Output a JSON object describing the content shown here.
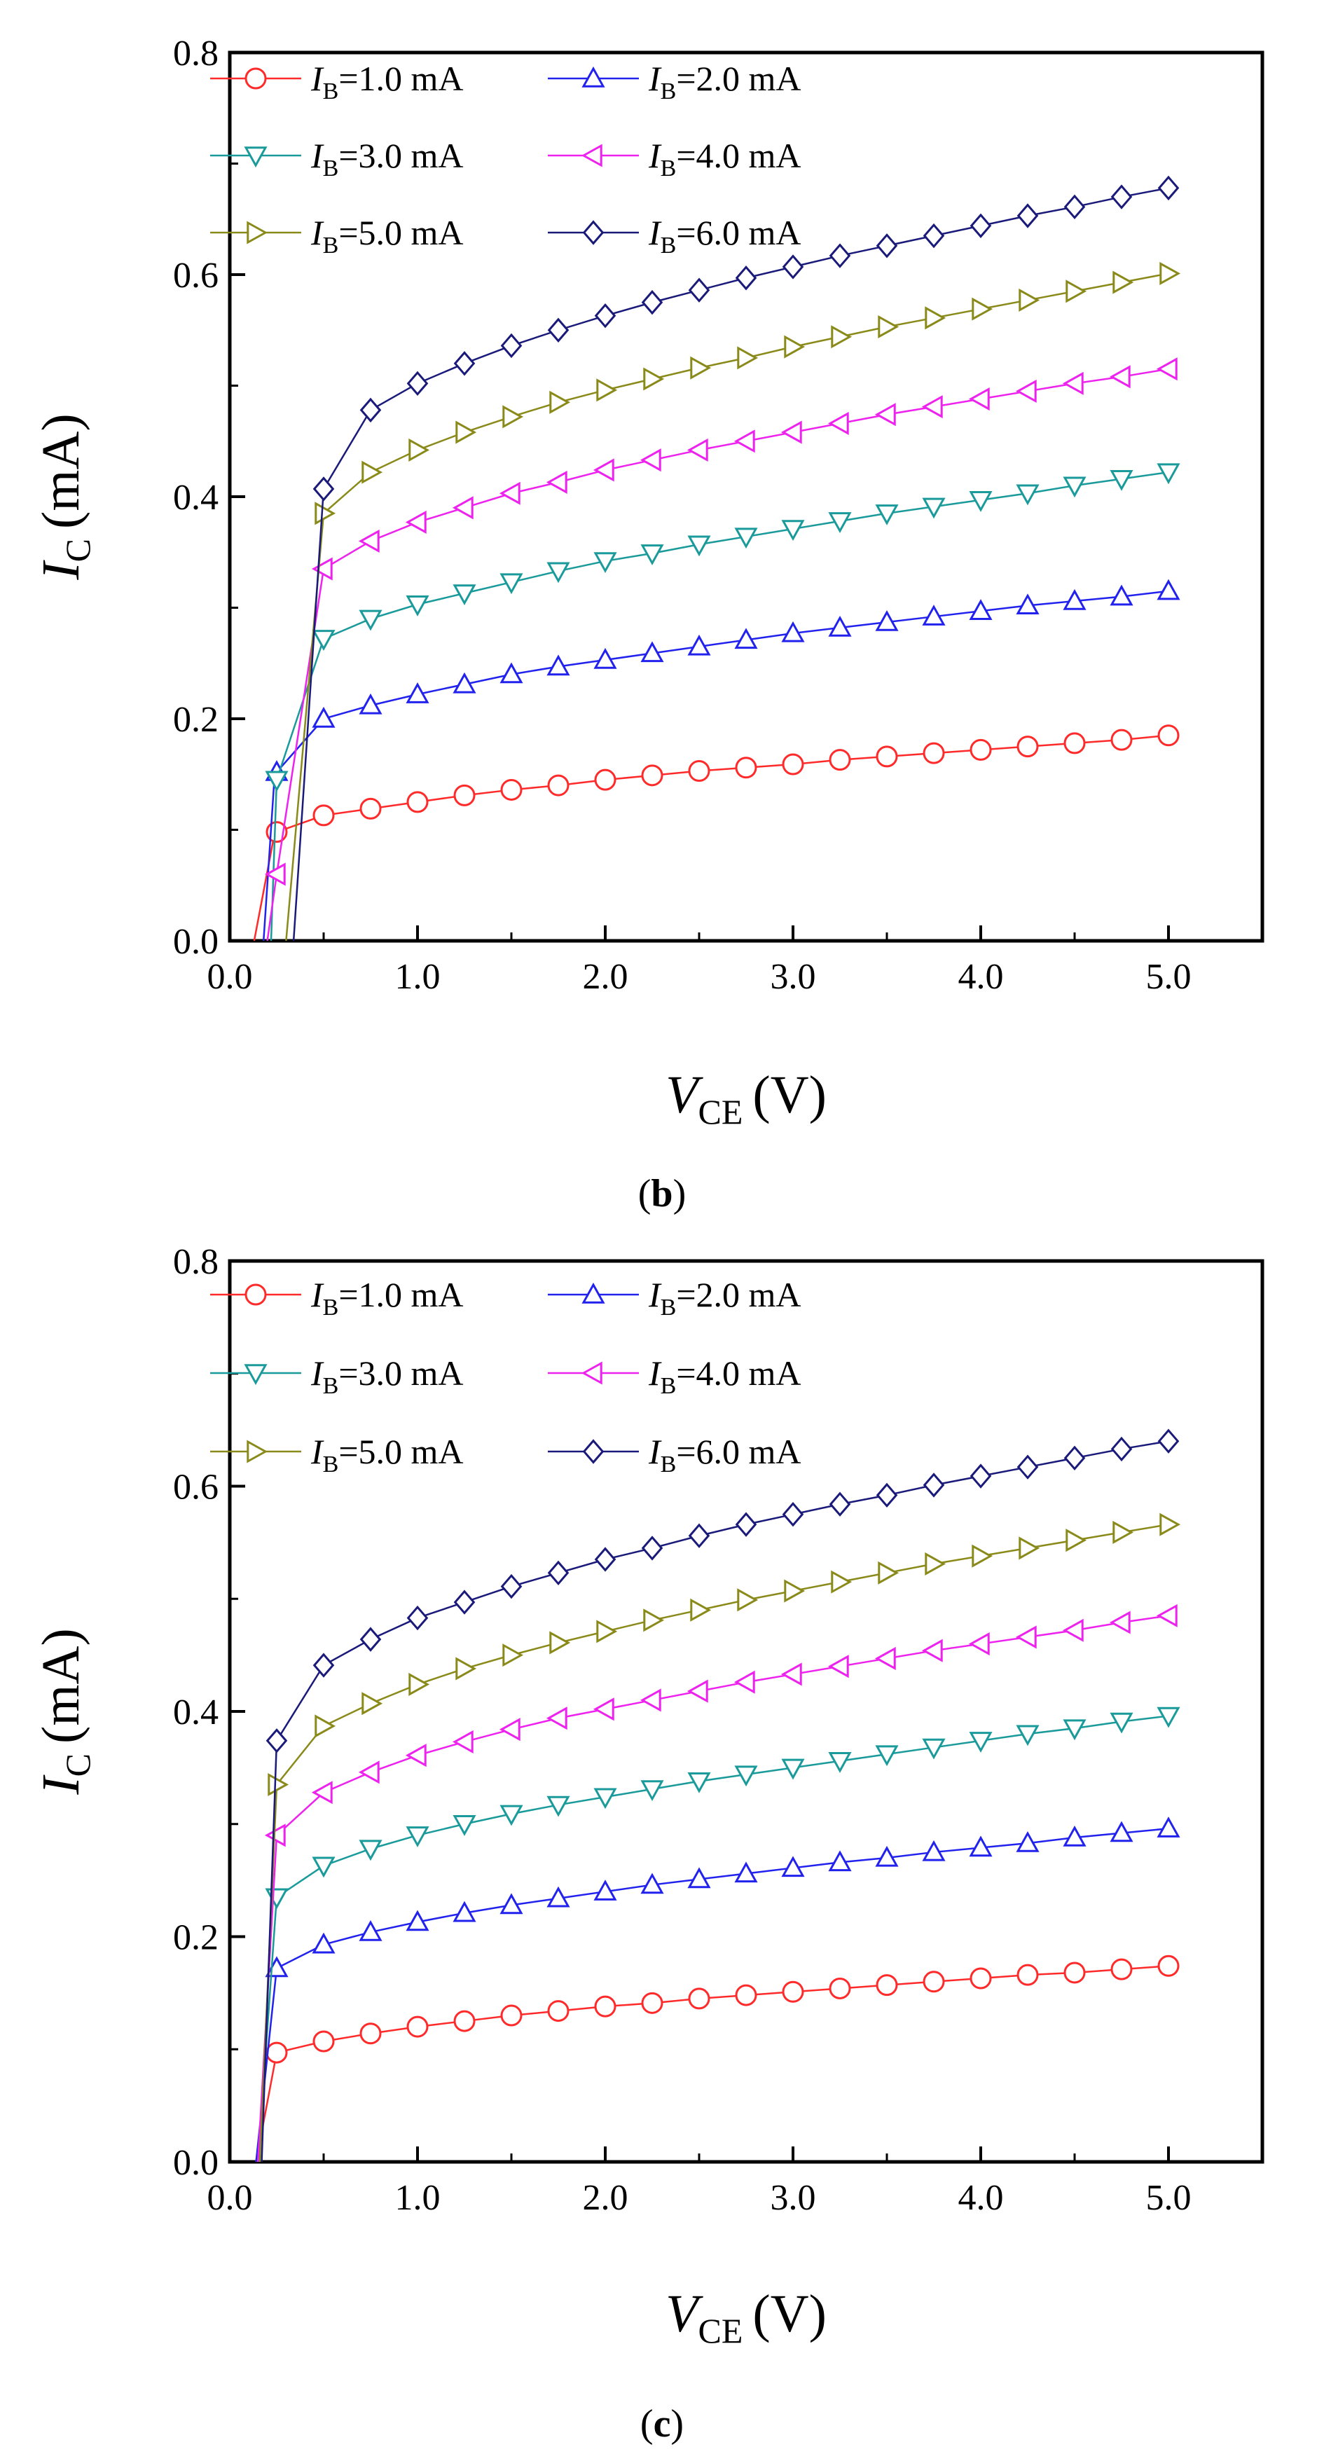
{
  "colors": {
    "ib1": "#ff2a2a",
    "ib2": "#2222ee",
    "ib3": "#1a9a9a",
    "ib4": "#ee22ee",
    "ib5": "#8a8a1a",
    "ib6": "#1a1a7a"
  },
  "chart_data": [
    {
      "type": "line",
      "panel_label": "(b)",
      "panel_letter": "b",
      "xlabel": "V",
      "xlabel_sub": "CE",
      "xlabel_unit": "(V)",
      "ylabel": "I",
      "ylabel_sub": "C",
      "ylabel_unit": "(mA)",
      "xlim": [
        0,
        5.5
      ],
      "ylim": [
        0,
        0.8
      ],
      "xticks": [
        0,
        1,
        2,
        3,
        4,
        5
      ],
      "xtick_labels": [
        "0.0",
        "1.0",
        "2.0",
        "3.0",
        "4.0",
        "5.0"
      ],
      "yticks": [
        0,
        0.2,
        0.4,
        0.6,
        0.8
      ],
      "ytick_labels": [
        "0.0",
        "0.2",
        "0.4",
        "0.6",
        "0.8"
      ],
      "legend_position": "top-left",
      "series": [
        {
          "name_main": "I",
          "name_sub": "B",
          "name_rest": "=1.0 mA",
          "color_key": "ib1",
          "marker": "circle",
          "start": [
            [
              0.13,
              0.0
            ],
            [
              0.24,
              0.098
            ]
          ],
          "x": [
            0.25,
            0.5,
            0.75,
            1.0,
            1.25,
            1.5,
            1.75,
            2.0,
            2.25,
            2.5,
            2.75,
            3.0,
            3.25,
            3.5,
            3.75,
            4.0,
            4.25,
            4.5,
            4.75,
            5.0
          ],
          "y": [
            0.098,
            0.113,
            0.119,
            0.125,
            0.131,
            0.136,
            0.14,
            0.145,
            0.149,
            0.153,
            0.156,
            0.159,
            0.163,
            0.166,
            0.169,
            0.172,
            0.175,
            0.178,
            0.181,
            0.185
          ]
        },
        {
          "name_main": "I",
          "name_sub": "B",
          "name_rest": "=2.0 mA",
          "color_key": "ib2",
          "marker": "triangle-up",
          "start": [
            [
              0.18,
              0.0
            ],
            [
              0.24,
              0.152
            ]
          ],
          "x": [
            0.25,
            0.5,
            0.75,
            1.0,
            1.25,
            1.5,
            1.75,
            2.0,
            2.25,
            2.5,
            2.75,
            3.0,
            3.25,
            3.5,
            3.75,
            4.0,
            4.25,
            4.5,
            4.75,
            5.0
          ],
          "y": [
            0.152,
            0.2,
            0.212,
            0.222,
            0.231,
            0.24,
            0.247,
            0.253,
            0.259,
            0.265,
            0.271,
            0.277,
            0.282,
            0.287,
            0.292,
            0.297,
            0.302,
            0.306,
            0.31,
            0.315
          ]
        },
        {
          "name_main": "I",
          "name_sub": "B",
          "name_rest": "=3.0 mA",
          "color_key": "ib3",
          "marker": "triangle-down",
          "start": [
            [
              0.22,
              0.0
            ]
          ],
          "x": [
            0.25,
            0.5,
            0.75,
            1.0,
            1.25,
            1.5,
            1.75,
            2.0,
            2.25,
            2.5,
            2.75,
            3.0,
            3.25,
            3.5,
            3.75,
            4.0,
            4.25,
            4.5,
            4.75,
            5.0
          ],
          "y": [
            0.145,
            0.272,
            0.29,
            0.303,
            0.313,
            0.323,
            0.333,
            0.342,
            0.349,
            0.357,
            0.364,
            0.371,
            0.378,
            0.385,
            0.391,
            0.397,
            0.403,
            0.41,
            0.416,
            0.422
          ]
        },
        {
          "name_main": "I",
          "name_sub": "B",
          "name_rest": "=4.0 mA",
          "color_key": "ib4",
          "marker": "triangle-left",
          "start": [
            [
              0.2,
              0.0
            ]
          ],
          "x": [
            0.25,
            0.5,
            0.75,
            1.0,
            1.25,
            1.5,
            1.75,
            2.0,
            2.25,
            2.5,
            2.75,
            3.0,
            3.25,
            3.5,
            3.75,
            4.0,
            4.25,
            4.5,
            4.75,
            5.0
          ],
          "y": [
            0.06,
            0.335,
            0.36,
            0.377,
            0.39,
            0.403,
            0.413,
            0.424,
            0.433,
            0.442,
            0.45,
            0.458,
            0.466,
            0.474,
            0.481,
            0.488,
            0.495,
            0.502,
            0.508,
            0.515
          ]
        },
        {
          "name_main": "I",
          "name_sub": "B",
          "name_rest": "=5.0 mA",
          "color_key": "ib5",
          "marker": "triangle-right",
          "start": [
            [
              0.3,
              0.0
            ]
          ],
          "x": [
            0.5,
            0.75,
            1.0,
            1.25,
            1.5,
            1.75,
            2.0,
            2.25,
            2.5,
            2.75,
            3.0,
            3.25,
            3.5,
            3.75,
            4.0,
            4.25,
            4.5,
            4.75,
            5.0
          ],
          "y": [
            0.385,
            0.422,
            0.442,
            0.458,
            0.472,
            0.485,
            0.496,
            0.506,
            0.516,
            0.525,
            0.535,
            0.544,
            0.553,
            0.561,
            0.569,
            0.577,
            0.585,
            0.593,
            0.601
          ]
        },
        {
          "name_main": "I",
          "name_sub": "B",
          "name_rest": "=6.0 mA",
          "color_key": "ib6",
          "marker": "diamond",
          "start": [
            [
              0.34,
              0.0
            ]
          ],
          "x": [
            0.5,
            0.75,
            1.0,
            1.25,
            1.5,
            1.75,
            2.0,
            2.25,
            2.5,
            2.75,
            3.0,
            3.25,
            3.5,
            3.75,
            4.0,
            4.25,
            4.5,
            4.75,
            5.0
          ],
          "y": [
            0.407,
            0.478,
            0.502,
            0.52,
            0.536,
            0.55,
            0.563,
            0.575,
            0.586,
            0.597,
            0.607,
            0.617,
            0.626,
            0.635,
            0.644,
            0.653,
            0.661,
            0.67,
            0.678
          ]
        }
      ]
    },
    {
      "type": "line",
      "panel_label": "(c)",
      "panel_letter": "c",
      "xlabel": "V",
      "xlabel_sub": "CE",
      "xlabel_unit": "(V)",
      "ylabel": "I",
      "ylabel_sub": "C",
      "ylabel_unit": "(mA)",
      "xlim": [
        0,
        5.5
      ],
      "ylim": [
        0,
        0.8
      ],
      "xticks": [
        0,
        1,
        2,
        3,
        4,
        5
      ],
      "xtick_labels": [
        "0.0",
        "1.0",
        "2.0",
        "3.0",
        "4.0",
        "5.0"
      ],
      "yticks": [
        0,
        0.2,
        0.4,
        0.6,
        0.8
      ],
      "ytick_labels": [
        "0.0",
        "0.2",
        "0.4",
        "0.6",
        "0.8"
      ],
      "legend_position": "top-left",
      "series": [
        {
          "name_main": "I",
          "name_sub": "B",
          "name_rest": "=1.0 mA",
          "color_key": "ib1",
          "marker": "circle",
          "start": [
            [
              0.14,
              0.0
            ]
          ],
          "x": [
            0.25,
            0.5,
            0.75,
            1.0,
            1.25,
            1.5,
            1.75,
            2.0,
            2.25,
            2.5,
            2.75,
            3.0,
            3.25,
            3.5,
            3.75,
            4.0,
            4.25,
            4.5,
            4.75,
            5.0
          ],
          "y": [
            0.097,
            0.107,
            0.114,
            0.12,
            0.125,
            0.13,
            0.134,
            0.138,
            0.141,
            0.145,
            0.148,
            0.151,
            0.154,
            0.157,
            0.16,
            0.163,
            0.166,
            0.168,
            0.171,
            0.174
          ]
        },
        {
          "name_main": "I",
          "name_sub": "B",
          "name_rest": "=2.0 mA",
          "color_key": "ib2",
          "marker": "triangle-up",
          "start": [
            [
              0.14,
              0.0
            ]
          ],
          "x": [
            0.25,
            0.5,
            0.75,
            1.0,
            1.25,
            1.5,
            1.75,
            2.0,
            2.25,
            2.5,
            2.75,
            3.0,
            3.25,
            3.5,
            3.75,
            4.0,
            4.25,
            4.5,
            4.75,
            5.0
          ],
          "y": [
            0.172,
            0.193,
            0.204,
            0.213,
            0.221,
            0.228,
            0.234,
            0.24,
            0.246,
            0.251,
            0.256,
            0.261,
            0.266,
            0.27,
            0.275,
            0.279,
            0.283,
            0.288,
            0.292,
            0.296
          ]
        },
        {
          "name_main": "I",
          "name_sub": "B",
          "name_rest": "=3.0 mA",
          "color_key": "ib3",
          "marker": "triangle-down",
          "start": [
            [
              0.15,
              0.0
            ]
          ],
          "x": [
            0.25,
            0.5,
            0.75,
            1.0,
            1.25,
            1.5,
            1.75,
            2.0,
            2.25,
            2.5,
            2.75,
            3.0,
            3.25,
            3.5,
            3.75,
            4.0,
            4.25,
            4.5,
            4.75,
            5.0
          ],
          "y": [
            0.235,
            0.263,
            0.278,
            0.29,
            0.3,
            0.309,
            0.317,
            0.324,
            0.331,
            0.338,
            0.344,
            0.35,
            0.356,
            0.362,
            0.368,
            0.374,
            0.38,
            0.385,
            0.391,
            0.396
          ]
        },
        {
          "name_main": "I",
          "name_sub": "B",
          "name_rest": "=4.0 mA",
          "color_key": "ib4",
          "marker": "triangle-left",
          "start": [
            [
              0.15,
              0.0
            ]
          ],
          "x": [
            0.25,
            0.5,
            0.75,
            1.0,
            1.25,
            1.5,
            1.75,
            2.0,
            2.25,
            2.5,
            2.75,
            3.0,
            3.25,
            3.5,
            3.75,
            4.0,
            4.25,
            4.5,
            4.75,
            5.0
          ],
          "y": [
            0.29,
            0.328,
            0.346,
            0.361,
            0.373,
            0.384,
            0.394,
            0.402,
            0.41,
            0.418,
            0.426,
            0.433,
            0.44,
            0.447,
            0.454,
            0.46,
            0.466,
            0.472,
            0.479,
            0.485
          ]
        },
        {
          "name_main": "I",
          "name_sub": "B",
          "name_rest": "=5.0 mA",
          "color_key": "ib5",
          "marker": "triangle-right",
          "start": [
            [
              0.16,
              0.0
            ]
          ],
          "x": [
            0.25,
            0.5,
            0.75,
            1.0,
            1.25,
            1.5,
            1.75,
            2.0,
            2.25,
            2.5,
            2.75,
            3.0,
            3.25,
            3.5,
            3.75,
            4.0,
            4.25,
            4.5,
            4.75,
            5.0
          ],
          "y": [
            0.335,
            0.387,
            0.407,
            0.424,
            0.438,
            0.45,
            0.461,
            0.471,
            0.481,
            0.49,
            0.499,
            0.507,
            0.515,
            0.523,
            0.531,
            0.538,
            0.545,
            0.552,
            0.559,
            0.566
          ]
        },
        {
          "name_main": "I",
          "name_sub": "B",
          "name_rest": "=6.0 mA",
          "color_key": "ib6",
          "marker": "diamond",
          "start": [
            [
              0.17,
              0.0
            ]
          ],
          "x": [
            0.25,
            0.5,
            0.75,
            1.0,
            1.25,
            1.5,
            1.75,
            2.0,
            2.25,
            2.5,
            2.75,
            3.0,
            3.25,
            3.5,
            3.75,
            4.0,
            4.25,
            4.5,
            4.75,
            5.0
          ],
          "y": [
            0.374,
            0.441,
            0.464,
            0.483,
            0.497,
            0.511,
            0.523,
            0.535,
            0.545,
            0.556,
            0.566,
            0.575,
            0.584,
            0.592,
            0.601,
            0.609,
            0.617,
            0.625,
            0.633,
            0.64
          ]
        }
      ]
    }
  ]
}
